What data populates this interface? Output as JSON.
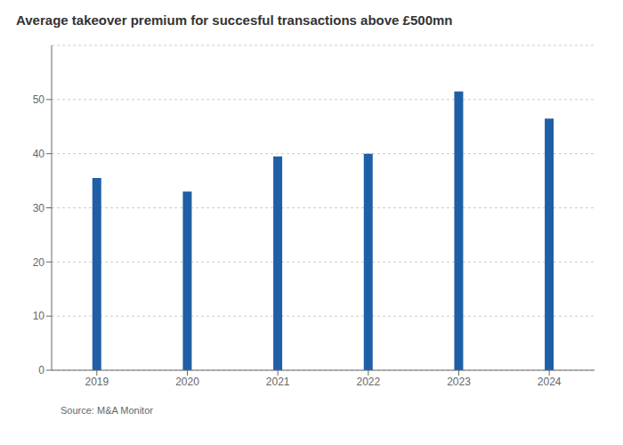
{
  "chart_data": {
    "type": "bar",
    "title": "Average takeover premium for succesful transactions above £500mn",
    "categories": [
      "2019",
      "2020",
      "2021",
      "2022",
      "2023",
      "2024"
    ],
    "values": [
      35.5,
      33.0,
      39.5,
      40.0,
      51.5,
      46.5
    ],
    "color": "#1f5fa6",
    "ylim": [
      0,
      60
    ],
    "yticks": [
      0,
      10,
      20,
      30,
      40,
      50
    ],
    "grid": true,
    "annotations": [
      "Source: M&A Monitor"
    ]
  }
}
